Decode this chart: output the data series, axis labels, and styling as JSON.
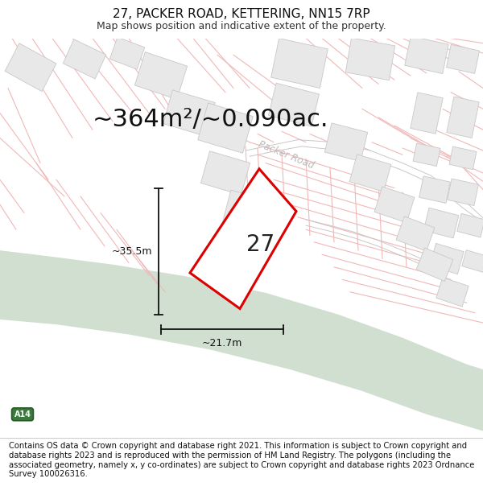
{
  "title": "27, PACKER ROAD, KETTERING, NN15 7RP",
  "subtitle": "Map shows position and indicative extent of the property.",
  "area_text": "~364m²/~0.090ac.",
  "dim_width": "~21.7m",
  "dim_height": "~35.5m",
  "label": "27",
  "road_label": "Packer Road",
  "road_badge": "A14",
  "footer": "Contains OS data © Crown copyright and database right 2021. This information is subject to Crown copyright and database rights 2023 and is reproduced with the permission of HM Land Registry. The polygons (including the associated geometry, namely x, y co-ordinates) are subject to Crown copyright and database rights 2023 Ordnance Survey 100026316.",
  "map_bg": "#ffffff",
  "road_green_color": "#d0dfd0",
  "road_green_outline": "#b8ccb8",
  "plot_outline_color": "#dd0000",
  "road_line_color": "#f0b8b8",
  "road_line_color2": "#c8c8c8",
  "building_color": "#e8e8e8",
  "building_outline": "#c8c8c8",
  "title_fontsize": 11,
  "subtitle_fontsize": 9,
  "area_fontsize": 22,
  "label_fontsize": 20,
  "footer_fontsize": 7.2,
  "title_color": "#111111",
  "subtitle_color": "#333333",
  "dim_label_fontsize": 9
}
